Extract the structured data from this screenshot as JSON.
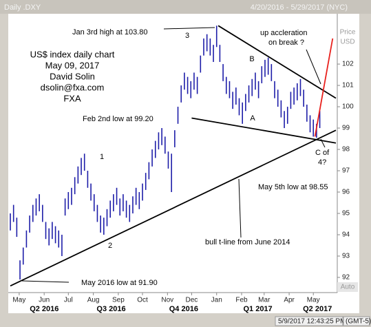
{
  "chart_data": {
    "type": "ohlc",
    "title": "Daily .DXY",
    "date_range": "4/20/2016 - 5/29/2017 (NYC)",
    "y_axis_label": [
      "Price",
      "USD"
    ],
    "timestamp": "5/9/2017 12:43:25 PM",
    "timezone": "(GMT-5)",
    "scale_mode": "Auto",
    "xlim": [
      0,
      404
    ],
    "ylim": [
      91.45,
      104.1
    ],
    "yticks": [
      92,
      93,
      94,
      95,
      96,
      97,
      98,
      99,
      100,
      101,
      102
    ],
    "xticks": [
      {
        "value": 11,
        "label": "May"
      },
      {
        "value": 42,
        "label": "Jun"
      },
      {
        "value": 72,
        "label": "Jul"
      },
      {
        "value": 103,
        "label": "Aug"
      },
      {
        "value": 134,
        "label": "Sep"
      },
      {
        "value": 164,
        "label": "Oct"
      },
      {
        "value": 195,
        "label": "Nov"
      },
      {
        "value": 225,
        "label": "Dec"
      },
      {
        "value": 256,
        "label": "Jan"
      },
      {
        "value": 287,
        "label": "Feb"
      },
      {
        "value": 315,
        "label": "Mar"
      },
      {
        "value": 346,
        "label": "Apr"
      },
      {
        "value": 376,
        "label": "May"
      }
    ],
    "quarter_labels": [
      {
        "value": 37,
        "label": "Q2 2016"
      },
      {
        "value": 120,
        "label": "Q3 2016"
      },
      {
        "value": 210,
        "label": "Q4 2016"
      },
      {
        "value": 302,
        "label": "Q1 2017"
      },
      {
        "value": 376,
        "label": "Q2 2017"
      }
    ],
    "series": [
      {
        "name": ".DXY",
        "color": "#1c1ca8",
        "x": [
          0,
          4,
          8,
          12,
          16,
          20,
          24,
          28,
          32,
          36,
          40,
          44,
          48,
          52,
          56,
          60,
          64,
          68,
          72,
          76,
          80,
          84,
          88,
          92,
          96,
          100,
          104,
          108,
          112,
          116,
          120,
          124,
          128,
          132,
          136,
          140,
          144,
          148,
          152,
          156,
          160,
          164,
          168,
          172,
          176,
          180,
          184,
          188,
          192,
          196,
          200,
          204,
          208,
          212,
          216,
          220,
          224,
          228,
          232,
          236,
          240,
          244,
          248,
          252,
          256,
          260,
          264,
          268,
          272,
          276,
          280,
          284,
          288,
          292,
          296,
          300,
          304,
          308,
          312,
          316,
          320,
          324,
          328,
          332,
          336,
          340,
          344,
          348,
          352,
          356,
          360,
          364,
          368,
          372,
          376,
          380,
          384
        ],
        "low": [
          94.2,
          94.6,
          93.9,
          91.9,
          92.6,
          93.4,
          94.1,
          94.6,
          94.9,
          95.1,
          94.6,
          93.8,
          93.5,
          93.8,
          93.6,
          93.4,
          93.0,
          94.9,
          95.2,
          95.4,
          95.9,
          96.4,
          96.8,
          97.0,
          96.2,
          95.6,
          95.1,
          94.6,
          94.1,
          94.0,
          94.4,
          94.8,
          95.1,
          95.4,
          94.9,
          95.1,
          94.8,
          94.6,
          95.0,
          95.4,
          95.2,
          95.6,
          96.1,
          96.6,
          97.2,
          97.6,
          98.0,
          98.2,
          97.8,
          97.1,
          96.0,
          98.1,
          99.2,
          100.2,
          100.8,
          100.6,
          100.4,
          100.8,
          100.6,
          101.6,
          102.4,
          102.6,
          102.4,
          102.1,
          102.8,
          102.1,
          101.2,
          100.6,
          100.4,
          99.9,
          100.1,
          99.6,
          99.2,
          99.8,
          100.2,
          100.5,
          100.8,
          100.4,
          101.1,
          101.4,
          101.5,
          101.2,
          100.4,
          100.0,
          99.5,
          99.0,
          99.2,
          99.9,
          100.1,
          100.3,
          100.5,
          100.0,
          99.3,
          98.8,
          98.6,
          98.55,
          99.0
        ],
        "high": [
          95.0,
          95.4,
          94.8,
          92.8,
          93.4,
          94.2,
          94.9,
          95.4,
          95.7,
          95.9,
          95.4,
          94.6,
          94.3,
          94.6,
          94.4,
          94.2,
          94.0,
          95.7,
          96.0,
          96.2,
          96.7,
          97.2,
          97.6,
          97.8,
          97.0,
          96.4,
          95.9,
          95.4,
          94.9,
          94.8,
          95.2,
          95.6,
          95.9,
          96.2,
          95.7,
          95.9,
          95.6,
          95.4,
          95.8,
          96.2,
          96.0,
          96.4,
          96.9,
          97.4,
          98.0,
          98.4,
          98.8,
          99.0,
          98.6,
          97.9,
          97.8,
          98.9,
          100.0,
          101.0,
          101.6,
          101.4,
          101.2,
          101.6,
          101.4,
          102.4,
          103.2,
          103.4,
          103.2,
          102.9,
          103.8,
          102.9,
          102.0,
          101.4,
          101.2,
          100.7,
          100.9,
          100.4,
          100.2,
          100.6,
          101.0,
          101.3,
          101.6,
          101.2,
          101.9,
          102.2,
          102.3,
          102.0,
          101.2,
          100.8,
          100.3,
          99.8,
          100.0,
          100.7,
          100.9,
          101.1,
          101.3,
          100.8,
          100.1,
          99.6,
          99.4,
          99.2,
          99.8
        ]
      }
    ],
    "trendlines": [
      {
        "color": "#000000",
        "x": [
          0,
          404
        ],
        "y": [
          91.6,
          98.9
        ]
      },
      {
        "color": "#000000",
        "x": [
          258,
          404
        ],
        "y": [
          103.8,
          100.4
        ]
      },
      {
        "color": "#000000",
        "x": [
          225,
          404
        ],
        "y": [
          99.47,
          98.3
        ]
      },
      {
        "color": "#e8201c",
        "x": [
          378,
          400
        ],
        "y": [
          98.6,
          103.2
        ]
      }
    ],
    "annotations": [
      "Jan 3rd high at 103.80",
      "up accleration",
      "on break ?",
      "US$ index daily chart",
      "May 09, 2017",
      "David Solin",
      "dsolin@fxa.com",
      "FXA",
      "3",
      "B",
      "A",
      "1",
      "2",
      "Feb 2nd low at 99.20",
      "C of",
      "4?",
      "May 5th low at 98.55",
      "bull t-line from June 2014",
      "May 2016 low at 91.90"
    ]
  }
}
